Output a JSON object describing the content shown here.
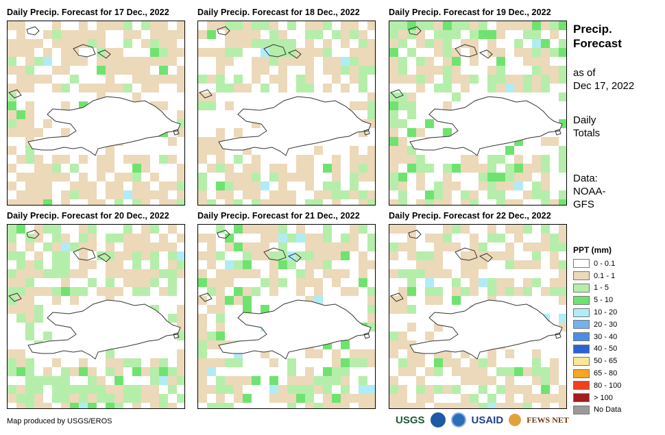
{
  "panels": [
    {
      "title": "Daily Precip. Forecast for 17 Dec., 2022",
      "seed": 11,
      "green": 0.18,
      "light_blue": 0.0
    },
    {
      "title": "Daily Precip. Forecast for 18 Dec., 2022",
      "seed": 23,
      "green": 0.35,
      "light_blue": 0.0
    },
    {
      "title": "Daily Precip. Forecast for 19 Dec., 2022",
      "seed": 37,
      "green": 0.42,
      "light_blue": 0.05
    },
    {
      "title": "Daily Precip. Forecast for 20 Dec., 2022",
      "seed": 41,
      "green": 0.45,
      "light_blue": 0.03
    },
    {
      "title": "Daily Precip. Forecast for 21 Dec., 2022",
      "seed": 53,
      "green": 0.4,
      "light_blue": 0.03
    },
    {
      "title": "Daily Precip. Forecast for 22 Dec., 2022",
      "seed": 67,
      "green": 0.28,
      "light_blue": 0.0
    }
  ],
  "side": {
    "title_line1": "Precip.",
    "title_line2": "Forecast",
    "asof_line1": "as of",
    "asof_line2": "Dec 17, 2022",
    "totals_line1": "Daily",
    "totals_line2": "Totals",
    "data_line1": "Data:",
    "data_line2": "NOAA-",
    "data_line3": "GFS"
  },
  "legend": {
    "title": "PPT (mm)",
    "items": [
      {
        "label": "0 - 0.1",
        "color": "#ffffff"
      },
      {
        "label": "0.1 - 1",
        "color": "#ecd9b9"
      },
      {
        "label": "1 - 5",
        "color": "#b5eeaa"
      },
      {
        "label": "5 - 10",
        "color": "#6fe36f"
      },
      {
        "label": "10 - 20",
        "color": "#b0ecf6"
      },
      {
        "label": "20 - 30",
        "color": "#73b2ee"
      },
      {
        "label": "30 - 40",
        "color": "#4a8ee6"
      },
      {
        "label": "40 - 50",
        "color": "#2a62d6"
      },
      {
        "label": "50 - 65",
        "color": "#fbe795"
      },
      {
        "label": "65 - 80",
        "color": "#f5a623"
      },
      {
        "label": "80 - 100",
        "color": "#f0401e"
      },
      {
        "label": "> 100",
        "color": "#a31d1d"
      },
      {
        "label": "No Data",
        "color": "#9a9a9a"
      }
    ]
  },
  "credit": "Map produced by USGS/EROS",
  "logos": {
    "usgs": "USGS",
    "usaid": "USAID",
    "fewsnet": "FEWS NET"
  }
}
